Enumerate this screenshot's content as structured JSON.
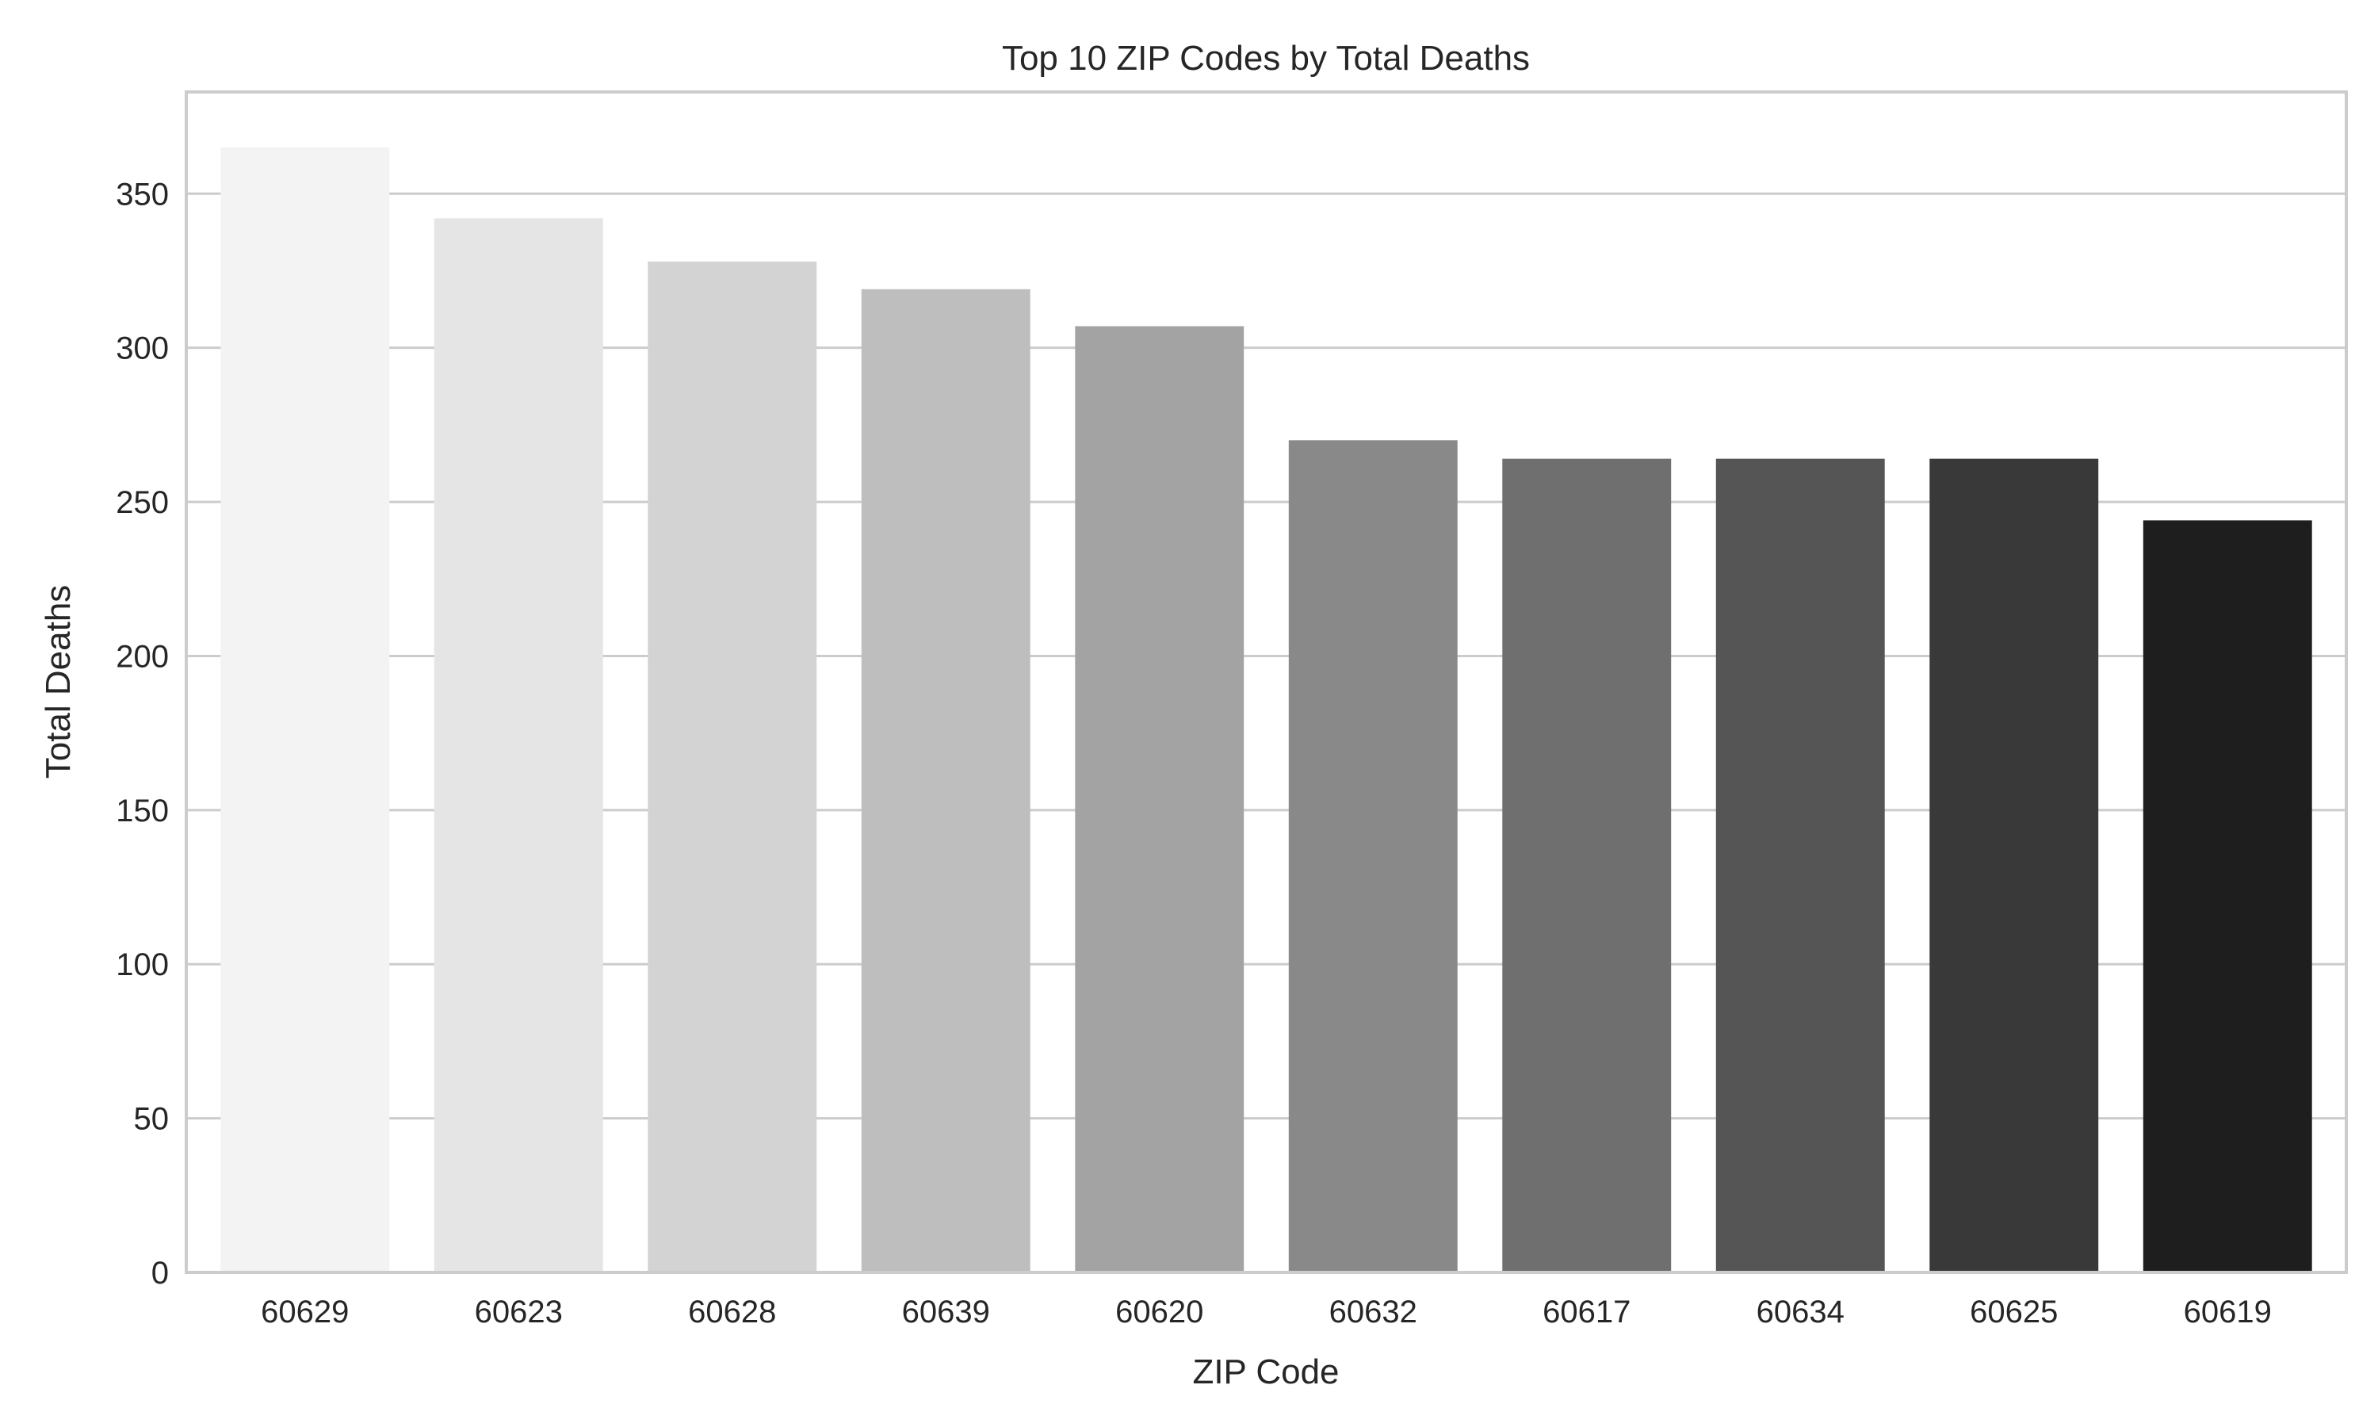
{
  "chart_data": {
    "type": "bar",
    "title": "Top 10 ZIP Codes by Total Deaths",
    "xlabel": "ZIP Code",
    "ylabel": "Total Deaths",
    "categories": [
      "60629",
      "60623",
      "60628",
      "60639",
      "60620",
      "60632",
      "60617",
      "60634",
      "60625",
      "60619"
    ],
    "values": [
      365,
      342,
      328,
      319,
      307,
      270,
      264,
      264,
      264,
      244
    ],
    "colors": [
      "#f3f3f3",
      "#e5e5e5",
      "#d3d3d3",
      "#bebebe",
      "#a3a3a3",
      "#898989",
      "#6f6f6f",
      "#555555",
      "#393939",
      "#1e1e1e"
    ],
    "yticks": [
      0,
      50,
      100,
      150,
      200,
      250,
      300,
      350
    ],
    "ylim": [
      0,
      383
    ],
    "grid": "horizontal",
    "legend": "none"
  }
}
